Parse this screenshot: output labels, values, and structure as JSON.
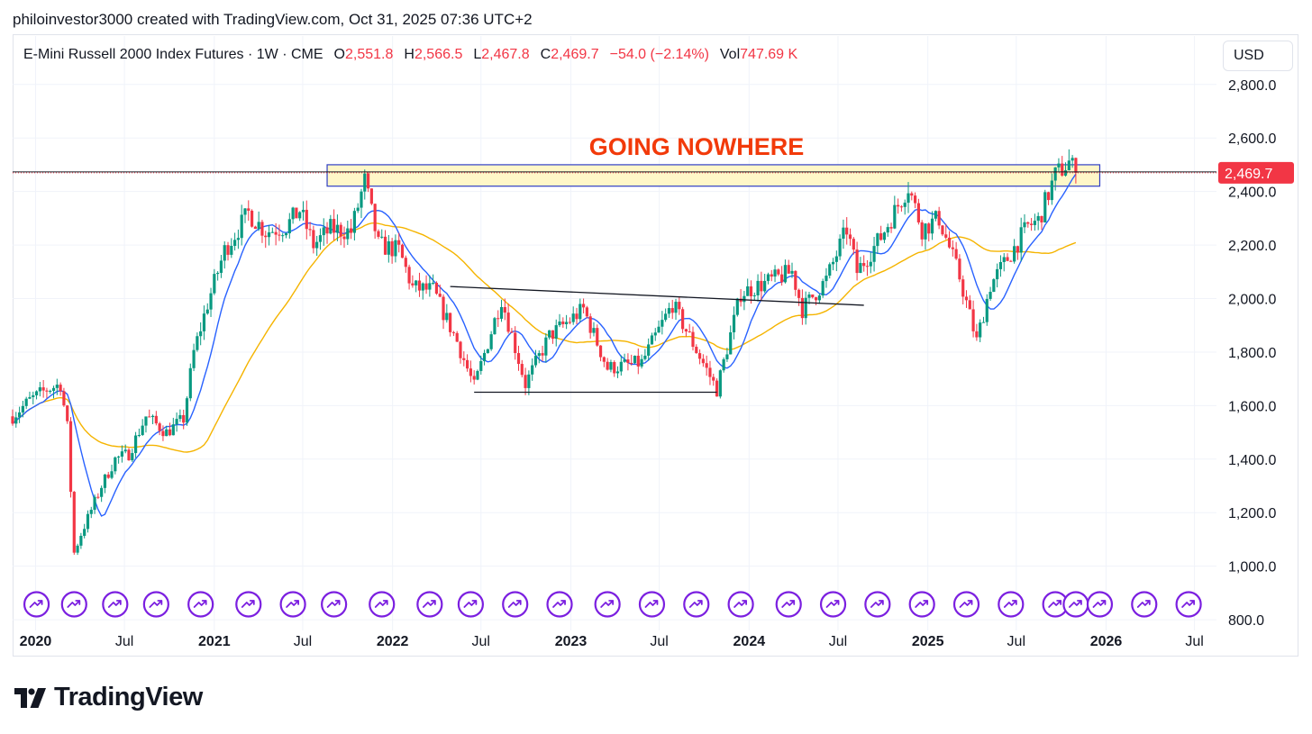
{
  "credit": "philoinvestor3000 created with TradingView.com, Oct 31, 2025 07:36 UTC+2",
  "legend": {
    "symbol": "E-Mini Russell 2000 Index Futures · 1W · CME",
    "o_label": "O",
    "o_value": "2,551.8",
    "h_label": "H",
    "h_value": "2,566.5",
    "l_label": "L",
    "l_value": "2,467.8",
    "c_label": "C",
    "c_value": "2,469.7",
    "change": "−54.0 (−2.14%)",
    "vol_label": "Vol",
    "vol_value": "747.69 K"
  },
  "currency_button": "USD",
  "brand": "TradingView",
  "colors": {
    "up": "#089981",
    "down": "#f23645",
    "fast_ma": "#2962ff",
    "slow_ma": "#f5b400",
    "annotation": "#f23a0a",
    "zone_fill": "#fff6c2",
    "zone_border": "#2f3fc4",
    "event_icon": "#7b1fe0"
  },
  "chart_data": {
    "type": "candlestick",
    "title": "GOING NOWHERE",
    "x_tick_labels": [
      "2020",
      "Jul",
      "2021",
      "Jul",
      "2022",
      "Jul",
      "2023",
      "Jul",
      "2024",
      "Jul",
      "2025",
      "Jul",
      "2026",
      "Jul"
    ],
    "x_tick_bold": [
      true,
      false,
      true,
      false,
      true,
      false,
      true,
      false,
      true,
      false,
      true,
      false,
      true,
      false
    ],
    "x_range": [
      "2019-11",
      "2026-08"
    ],
    "y_tick_labels": [
      "800.0",
      "1,000.0",
      "1,200.0",
      "1,400.0",
      "1,600.0",
      "1,800.0",
      "2,000.0",
      "2,200.0",
      "2,400.0",
      "2,600.0",
      "2,800.0"
    ],
    "y_ticks": [
      800,
      1000,
      1200,
      1400,
      1600,
      1800,
      2000,
      2200,
      2400,
      2600,
      2800
    ],
    "ylim": [
      760,
      2880
    ],
    "last_price": 2469.7,
    "last_price_label": "2,469.7",
    "grid": true,
    "price_path": [
      {
        "t": "2019-11-15",
        "v": 1560
      },
      {
        "t": "2019-12-20",
        "v": 1620
      },
      {
        "t": "2020-01-24",
        "v": 1660
      },
      {
        "t": "2020-02-21",
        "v": 1680
      },
      {
        "t": "2020-03-06",
        "v": 1520
      },
      {
        "t": "2020-03-20",
        "v": 1050
      },
      {
        "t": "2020-04-03",
        "v": 1120
      },
      {
        "t": "2020-05-15",
        "v": 1300
      },
      {
        "t": "2020-06-12",
        "v": 1400
      },
      {
        "t": "2020-07-10",
        "v": 1420
      },
      {
        "t": "2020-08-14",
        "v": 1560
      },
      {
        "t": "2020-09-25",
        "v": 1500
      },
      {
        "t": "2020-10-30",
        "v": 1550
      },
      {
        "t": "2020-11-20",
        "v": 1800
      },
      {
        "t": "2020-12-18",
        "v": 1980
      },
      {
        "t": "2021-01-22",
        "v": 2180
      },
      {
        "t": "2021-03-12",
        "v": 2320
      },
      {
        "t": "2021-04-16",
        "v": 2250
      },
      {
        "t": "2021-05-28",
        "v": 2270
      },
      {
        "t": "2021-06-25",
        "v": 2330
      },
      {
        "t": "2021-07-23",
        "v": 2200
      },
      {
        "t": "2021-08-27",
        "v": 2260
      },
      {
        "t": "2021-10-08",
        "v": 2250
      },
      {
        "t": "2021-11-05",
        "v": 2440
      },
      {
        "t": "2021-12-03",
        "v": 2200
      },
      {
        "t": "2022-01-14",
        "v": 2180
      },
      {
        "t": "2022-02-11",
        "v": 2040
      },
      {
        "t": "2022-03-25",
        "v": 2030
      },
      {
        "t": "2022-05-13",
        "v": 1840
      },
      {
        "t": "2022-06-17",
        "v": 1670
      },
      {
        "t": "2022-08-12",
        "v": 2000
      },
      {
        "t": "2022-09-30",
        "v": 1680
      },
      {
        "t": "2022-11-18",
        "v": 1860
      },
      {
        "t": "2023-01-27",
        "v": 1960
      },
      {
        "t": "2023-03-17",
        "v": 1740
      },
      {
        "t": "2023-05-26",
        "v": 1760
      },
      {
        "t": "2023-07-28",
        "v": 1980
      },
      {
        "t": "2023-10-27",
        "v": 1660
      },
      {
        "t": "2023-12-15",
        "v": 2020
      },
      {
        "t": "2024-03-29",
        "v": 2100
      },
      {
        "t": "2024-04-19",
        "v": 1960
      },
      {
        "t": "2024-06-07",
        "v": 2070
      },
      {
        "t": "2024-07-19",
        "v": 2260
      },
      {
        "t": "2024-08-09",
        "v": 2100
      },
      {
        "t": "2024-09-27",
        "v": 2230
      },
      {
        "t": "2024-11-22",
        "v": 2420
      },
      {
        "t": "2024-12-20",
        "v": 2260
      },
      {
        "t": "2025-01-24",
        "v": 2300
      },
      {
        "t": "2025-03-07",
        "v": 2080
      },
      {
        "t": "2025-04-11",
        "v": 1840
      },
      {
        "t": "2025-05-09",
        "v": 2050
      },
      {
        "t": "2025-06-13",
        "v": 2150
      },
      {
        "t": "2025-07-25",
        "v": 2270
      },
      {
        "t": "2025-08-15",
        "v": 2290
      },
      {
        "t": "2025-09-19",
        "v": 2460
      },
      {
        "t": "2025-10-17",
        "v": 2510
      },
      {
        "t": "2025-10-31",
        "v": 2469.7
      }
    ],
    "resistance_zone": {
      "t_start": "2021-08-20",
      "t_end": "2025-12-19",
      "low": 2420,
      "high": 2500
    },
    "trendlines": [
      {
        "t1": "2022-04-29",
        "v1": 2045,
        "t2": "2024-08-23",
        "v2": 1975
      },
      {
        "t1": "2022-06-17",
        "v1": 1650,
        "t2": "2023-10-27",
        "v2": 1650
      }
    ],
    "event_markers": [
      "2020-01-03",
      "2020-03-20",
      "2020-06-12",
      "2020-09-04",
      "2020-12-04",
      "2021-03-12",
      "2021-06-11",
      "2021-09-03",
      "2021-12-10",
      "2022-03-18",
      "2022-06-10",
      "2022-09-09",
      "2022-12-09",
      "2023-03-17",
      "2023-06-16",
      "2023-09-15",
      "2023-12-15",
      "2024-03-22",
      "2024-06-21",
      "2024-09-20",
      "2024-12-20",
      "2025-03-21",
      "2025-06-20",
      "2025-09-19",
      "2025-10-31",
      "2025-12-19",
      "2026-03-20",
      "2026-06-19"
    ],
    "fast_ma_period": 10,
    "slow_ma_period": 40
  }
}
